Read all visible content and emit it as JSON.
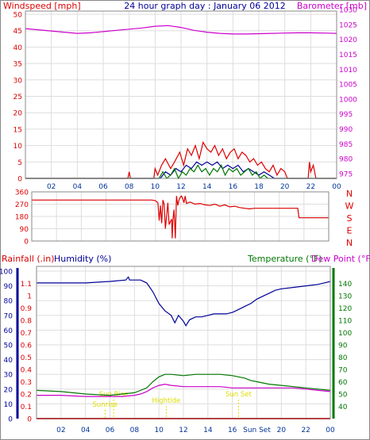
{
  "header": {
    "left_label": "Windspeed [mph]",
    "center_title": "24 hour graph day : January 06 2012",
    "right_label": "Barometer [mb]"
  },
  "colors": {
    "red": "#dd0000",
    "magenta": "#cc00cc",
    "blue": "#000099",
    "green": "#007700",
    "olive": "#336600",
    "yellow": "#dddd00",
    "grid": "#dddddd",
    "axis_time": "#003399"
  },
  "legend_row": {
    "rainfall": "Rainfall (.in)",
    "humidity": "Humidity (%)",
    "temperature": "Temperature (°F)",
    "dewpoint": "Dew Point (°F)"
  },
  "x_tick_labels_top": [
    "02",
    "04",
    "06",
    "08",
    "10",
    "12",
    "14",
    "16",
    "18",
    "20",
    "22",
    "00"
  ],
  "x_tick_labels_bottom": [
    "02",
    "04",
    "06",
    "08",
    "10",
    "12",
    "14",
    "16",
    "Sun Set",
    "20",
    "22",
    "00"
  ],
  "chart_data": [
    {
      "type": "line",
      "id": "wind_baro",
      "x_unit": "hour",
      "xlim": [
        0,
        24
      ],
      "left_axis": {
        "label": "Windspeed [mph]",
        "ticks": [
          0,
          5,
          10,
          15,
          20,
          25,
          30,
          35,
          40,
          45,
          50
        ],
        "ylim": [
          0,
          50
        ]
      },
      "right_axis": {
        "label": "Barometer [mb]",
        "ticks": [
          975,
          980,
          985,
          990,
          995,
          1000,
          1005,
          1010,
          1015,
          1020,
          1025,
          1030
        ],
        "ylim": [
          975,
          1030
        ]
      },
      "series": [
        {
          "axis": "right",
          "color": "#cc00cc",
          "x": [
            0,
            1,
            2,
            3,
            4,
            5,
            6,
            7,
            8,
            9,
            10,
            11,
            12,
            13,
            14,
            15,
            16,
            17,
            18,
            19,
            20,
            21,
            22,
            23,
            24
          ],
          "values": [
            1023.6,
            1023.2,
            1022.8,
            1022.4,
            1022.0,
            1022.2,
            1022.6,
            1023.0,
            1023.4,
            1023.8,
            1024.4,
            1024.6,
            1024.0,
            1023.0,
            1022.4,
            1022.0,
            1021.8,
            1021.8,
            1021.9,
            1022.0,
            1022.1,
            1022.2,
            1022.2,
            1022.1,
            1022.0
          ]
        },
        {
          "axis": "left",
          "color": "#dd0000",
          "x": [
            0,
            7.9,
            8.0,
            8.1,
            9.9,
            10.0,
            10.2,
            10.5,
            10.8,
            11.2,
            11.5,
            11.9,
            12.2,
            12.5,
            12.8,
            13.1,
            13.4,
            13.7,
            14.0,
            14.3,
            14.6,
            14.9,
            15.2,
            15.5,
            15.8,
            16.1,
            16.4,
            16.7,
            17.0,
            17.3,
            17.6,
            17.9,
            18.2,
            18.5,
            18.8,
            19.1,
            19.4,
            19.7,
            20.0,
            20.2,
            21.8,
            21.9,
            22.0,
            22.2,
            22.4,
            24
          ],
          "values": [
            0,
            0,
            2,
            0,
            0,
            3,
            1,
            4,
            6,
            3,
            5,
            8,
            4,
            9,
            7,
            10,
            6,
            11,
            9,
            8,
            10,
            7,
            9,
            6,
            8,
            9,
            6,
            8,
            7,
            5,
            6,
            4,
            5,
            3,
            2,
            4,
            1,
            3,
            2,
            0,
            0,
            5,
            2,
            4,
            0,
            0
          ]
        },
        {
          "axis": "left",
          "color": "#000099",
          "x": [
            0,
            10.4,
            10.8,
            11.2,
            11.6,
            12.0,
            12.4,
            12.8,
            13.2,
            13.6,
            14.0,
            14.4,
            14.8,
            15.2,
            15.6,
            16.0,
            16.4,
            16.8,
            17.2,
            17.6,
            18.0,
            18.4,
            18.8,
            19.2,
            24
          ],
          "values": [
            0,
            0,
            2,
            1,
            3,
            2,
            4,
            3,
            5,
            4,
            5,
            4,
            5,
            3,
            4,
            3,
            4,
            2,
            3,
            2,
            1,
            2,
            1,
            0,
            0
          ]
        },
        {
          "axis": "left",
          "color": "#007700",
          "x": [
            0,
            10.3,
            10.6,
            10.9,
            11.2,
            11.5,
            11.8,
            12.1,
            12.4,
            12.7,
            13.0,
            13.3,
            13.6,
            13.9,
            14.2,
            14.5,
            14.8,
            15.1,
            15.4,
            15.7,
            16.0,
            16.3,
            16.6,
            16.9,
            17.2,
            17.5,
            17.8,
            18.1,
            18.4,
            18.7,
            19.0,
            24
          ],
          "values": [
            0,
            0,
            2,
            0,
            1,
            3,
            0,
            2,
            1,
            3,
            2,
            4,
            2,
            3,
            1,
            3,
            2,
            4,
            1,
            3,
            2,
            3,
            1,
            2,
            3,
            1,
            2,
            0,
            1,
            0,
            0,
            0
          ]
        }
      ]
    },
    {
      "type": "line",
      "id": "wind_direction",
      "x_unit": "hour",
      "xlim": [
        0,
        24
      ],
      "left_axis": {
        "ticks": [
          0,
          90,
          180,
          270,
          360
        ],
        "ylim": [
          0,
          360
        ]
      },
      "right_labels": [
        "N",
        "W",
        "S",
        "E",
        "N"
      ],
      "series": [
        {
          "color": "#dd0000",
          "x": [
            0,
            9.7,
            10.0,
            10.2,
            10.3,
            10.4,
            10.5,
            10.6,
            10.7,
            10.8,
            11.0,
            11.1,
            11.3,
            11.35,
            11.4,
            11.5,
            11.6,
            11.7,
            11.8,
            11.9,
            12.0,
            12.1,
            12.2,
            12.3,
            12.4,
            12.5,
            12.8,
            13.2,
            13.6,
            14.0,
            14.4,
            14.8,
            15.2,
            15.6,
            16.0,
            16.4,
            16.8,
            17.2,
            17.6,
            18.0,
            21.5,
            21.6,
            24
          ],
          "values": [
            300,
            300,
            295,
            280,
            150,
            260,
            130,
            300,
            270,
            90,
            280,
            120,
            160,
            20,
            150,
            230,
            20,
            330,
            260,
            300,
            320,
            330,
            310,
            280,
            330,
            275,
            285,
            270,
            275,
            265,
            260,
            270,
            255,
            265,
            250,
            255,
            245,
            240,
            235,
            240,
            240,
            170,
            170
          ]
        }
      ]
    },
    {
      "type": "line",
      "id": "temp_humidity",
      "x_unit": "hour",
      "xlim": [
        0,
        24
      ],
      "left_axis": {
        "label": "Humidity (%)",
        "ticks": [
          0,
          10,
          20,
          30,
          40,
          50,
          60,
          70,
          80,
          90,
          100
        ],
        "ylim": [
          0,
          100
        ]
      },
      "rain_axis": {
        "label": "Rainfall (.in)",
        "ticks": [
          0,
          0.1,
          0.2,
          0.3,
          0.4,
          0.5,
          0.6,
          0.7,
          0.8,
          0.9,
          1,
          1.1
        ],
        "ylim": [
          0,
          1.2
        ]
      },
      "right_axis": {
        "label": "Temperature (°F)",
        "ticks": [
          40,
          50,
          60,
          70,
          80,
          90,
          100,
          110,
          120,
          130,
          140
        ],
        "ylim": [
          30,
          150
        ]
      },
      "annotations": [
        {
          "text": "Sun Rise",
          "x": 6.3
        },
        {
          "text": "Sunrise",
          "x": 5.6
        },
        {
          "text": "Hightide",
          "x": 10.6
        },
        {
          "text": "Sun Set",
          "x": 16.5
        }
      ],
      "series": [
        {
          "name": "Humidity (%)",
          "axis": "left",
          "color": "#000099",
          "x": [
            0,
            2.0,
            4.0,
            6.0,
            7.3,
            7.5,
            7.6,
            8.0,
            8.5,
            9.0,
            9.5,
            10.0,
            10.5,
            11.0,
            11.3,
            11.6,
            12.0,
            12.2,
            12.5,
            13.0,
            13.5,
            14.0,
            14.5,
            15.0,
            15.5,
            16.0,
            16.5,
            17.0,
            17.5,
            18.0,
            18.5,
            19.0,
            19.5,
            20.0,
            21.0,
            22.0,
            23.0,
            23.5,
            24
          ],
          "values": [
            92,
            92,
            92,
            93,
            94,
            96,
            94,
            94,
            94,
            92,
            86,
            78,
            73,
            70,
            65,
            70,
            66,
            63,
            67,
            69,
            69,
            70,
            71,
            71,
            71,
            72,
            74,
            76,
            78,
            81,
            83,
            85,
            87,
            88,
            89,
            90,
            91,
            92,
            93
          ]
        },
        {
          "name": "Temperature (°F)",
          "axis": "right",
          "color": "#007700",
          "x": [
            0,
            2,
            4,
            6,
            7,
            8,
            9,
            9.5,
            10,
            10.5,
            11,
            12,
            13,
            14,
            15,
            16,
            17,
            17.5,
            18,
            19,
            20,
            21,
            22,
            23,
            24
          ],
          "values": [
            53,
            52,
            50,
            49,
            50,
            51,
            55,
            60,
            64,
            66,
            66,
            65,
            66,
            66,
            66,
            65,
            63,
            61,
            60,
            58,
            57,
            56,
            55,
            54,
            53
          ]
        },
        {
          "name": "Dew Point (°F)",
          "axis": "right",
          "color": "#cc00cc",
          "x": [
            0,
            2,
            4,
            6,
            7,
            8,
            8.5,
            9,
            9.5,
            10,
            10.5,
            11,
            12,
            13,
            14,
            15,
            16,
            17,
            18,
            19,
            20,
            21,
            22,
            23,
            24
          ],
          "values": [
            49,
            49,
            48,
            48,
            48,
            49,
            50,
            52,
            55,
            57,
            58,
            57,
            56,
            56,
            56,
            56,
            55,
            55,
            55,
            55,
            55,
            55,
            54,
            53,
            52
          ]
        },
        {
          "name": "Rainfall (.in)",
          "axis": "rain",
          "color": "#dd0000",
          "x": [
            0,
            24
          ],
          "values": [
            0,
            0
          ]
        }
      ]
    }
  ]
}
